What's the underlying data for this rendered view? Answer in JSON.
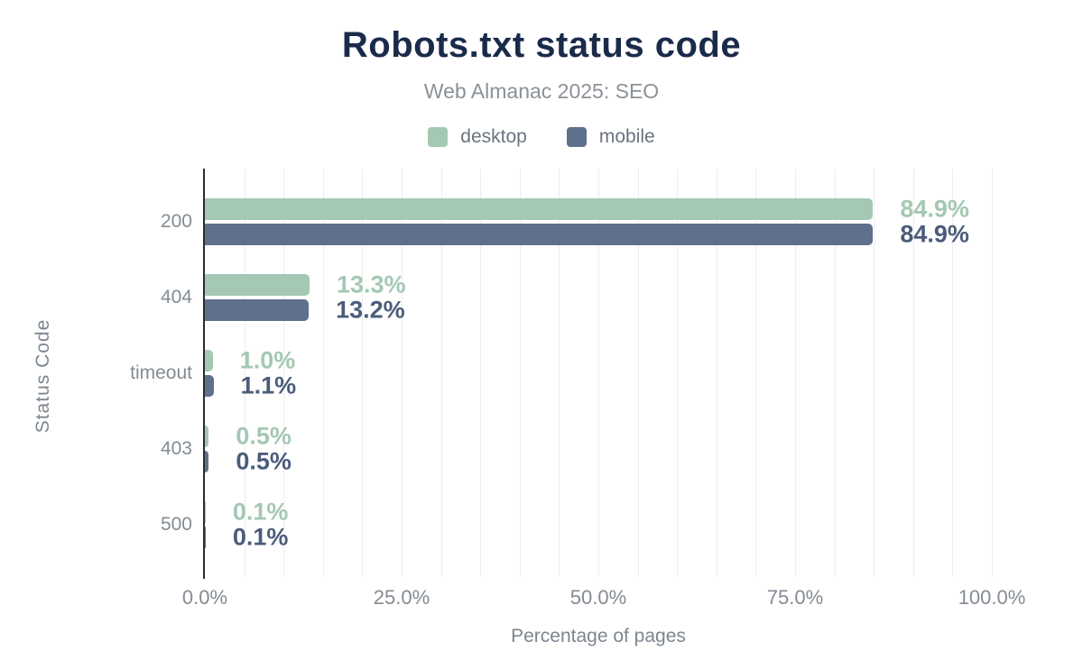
{
  "chart_data": {
    "type": "bar",
    "orientation": "horizontal",
    "title": "Robots.txt status code",
    "subtitle": "Web Almanac 2025: SEO",
    "categories": [
      "200",
      "404",
      "timeout",
      "403",
      "500"
    ],
    "series": [
      {
        "name": "desktop",
        "color": "#a4c8b3",
        "label_color": "#a4c8b3",
        "values": [
          84.9,
          13.3,
          1.0,
          0.5,
          0.1
        ],
        "value_labels": [
          "84.9%",
          "13.3%",
          "1.0%",
          "0.5%",
          "0.1%"
        ]
      },
      {
        "name": "mobile",
        "color": "#5e708c",
        "label_color": "#4b5c7a",
        "values": [
          84.9,
          13.2,
          1.1,
          0.5,
          0.1
        ],
        "value_labels": [
          "84.9%",
          "13.2%",
          "1.1%",
          "0.5%",
          "0.1%"
        ]
      }
    ],
    "xlabel": "Percentage of pages",
    "ylabel": "Status Code",
    "xlim": [
      0,
      100
    ],
    "xticks": [
      {
        "value": 0,
        "label": "0.0%"
      },
      {
        "value": 25,
        "label": "25.0%"
      },
      {
        "value": 50,
        "label": "50.0%"
      },
      {
        "value": 75,
        "label": "75.0%"
      },
      {
        "value": 100,
        "label": "100.0%"
      }
    ],
    "grid": {
      "show": true,
      "minor_step_pct": 5,
      "color": "#ededef"
    },
    "legend_position": "top"
  },
  "colors": {
    "title": "#1a2b4a",
    "subtitle": "#8b9198",
    "legend_text": "#6a7380",
    "axis_text": "#848b94",
    "axis_label": "#7d8590",
    "axis_line": "#2d2d2d",
    "background": "#ffffff"
  }
}
